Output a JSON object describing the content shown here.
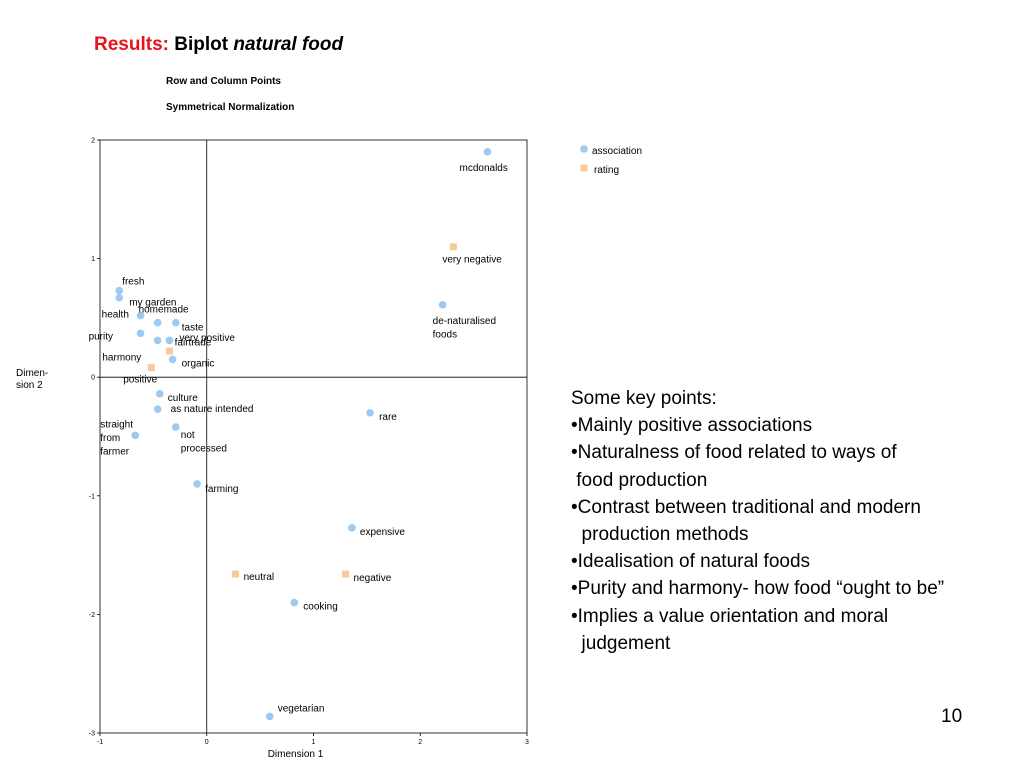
{
  "slide": {
    "title_prefix": "Results:",
    "title_main": "Biplot",
    "title_italic": "natural food",
    "page_number": "10"
  },
  "chart_data": {
    "type": "scatter",
    "title": "Row and Column Points",
    "subtitle": "Symmetrical Normalization",
    "xlabel": "Dimension 1",
    "ylabel": "Dimen-\nsion 2",
    "xlim": [
      -1,
      3
    ],
    "ylim": [
      -3,
      2
    ],
    "xticks": [
      "-1",
      "0",
      "1",
      "2",
      "3"
    ],
    "yticks": [
      "-3",
      "-2",
      "-1",
      "0",
      "1",
      "2"
    ],
    "grid": false,
    "reference_lines": {
      "x": 0,
      "y": 0
    },
    "legend_position": "right",
    "series": [
      {
        "name": "association",
        "marker": "circle",
        "color": "#9ec9f1",
        "points": [
          {
            "label": "mcdonalds",
            "x": 2.63,
            "y": 1.9
          },
          {
            "label": "de-naturalised\nfoods",
            "x": 2.21,
            "y": 0.61
          },
          {
            "label": "fresh",
            "x": -0.82,
            "y": 0.73
          },
          {
            "label": "my garden",
            "x": -0.82,
            "y": 0.67
          },
          {
            "label": "homemade",
            "x": -0.62,
            "y": 0.52
          },
          {
            "label": "health",
            "x": -0.46,
            "y": 0.46
          },
          {
            "label": "taste",
            "x": -0.29,
            "y": 0.46
          },
          {
            "label": "purity",
            "x": -0.62,
            "y": 0.37
          },
          {
            "label": "fairtrade",
            "x": -0.46,
            "y": 0.31
          },
          {
            "label": "organic",
            "x": -0.32,
            "y": 0.15
          },
          {
            "label": "harmony",
            "x": -0.35,
            "y": 0.31
          },
          {
            "label": "culture",
            "x": -0.44,
            "y": -0.14
          },
          {
            "label": "as nature intended",
            "x": -0.46,
            "y": -0.27
          },
          {
            "label": "straight\nfrom\nfarmer",
            "x": -0.67,
            "y": -0.49
          },
          {
            "label": "not\nprocessed",
            "x": -0.29,
            "y": -0.42
          },
          {
            "label": "rare",
            "x": 1.53,
            "y": -0.3
          },
          {
            "label": "farming",
            "x": -0.09,
            "y": -0.9
          },
          {
            "label": "expensive",
            "x": 1.36,
            "y": -1.27
          },
          {
            "label": "cooking",
            "x": 0.82,
            "y": -1.9
          },
          {
            "label": "vegetarian",
            "x": 0.59,
            "y": -2.86
          }
        ]
      },
      {
        "name": "rating",
        "marker": "square",
        "color": "#f9c99b",
        "points": [
          {
            "label": "very negative",
            "x": 2.31,
            "y": 1.1
          },
          {
            "label": "very positive",
            "x": -0.35,
            "y": 0.22
          },
          {
            "label": "positive",
            "x": -0.52,
            "y": 0.08
          },
          {
            "label": "neutral",
            "x": 0.27,
            "y": -1.66
          },
          {
            "label": "negative",
            "x": 1.3,
            "y": -1.66
          }
        ]
      }
    ]
  },
  "notes": {
    "heading": "Some key points:",
    "lines": [
      "•Mainly positive associations",
      "•Naturalness of food related to ways of",
      " food production",
      "•Contrast between traditional and modern",
      "  production methods",
      "•Idealisation of natural foods",
      "•Purity and harmony- how food “ought to be”",
      "•Implies a value orientation and moral",
      "  judgement"
    ]
  }
}
